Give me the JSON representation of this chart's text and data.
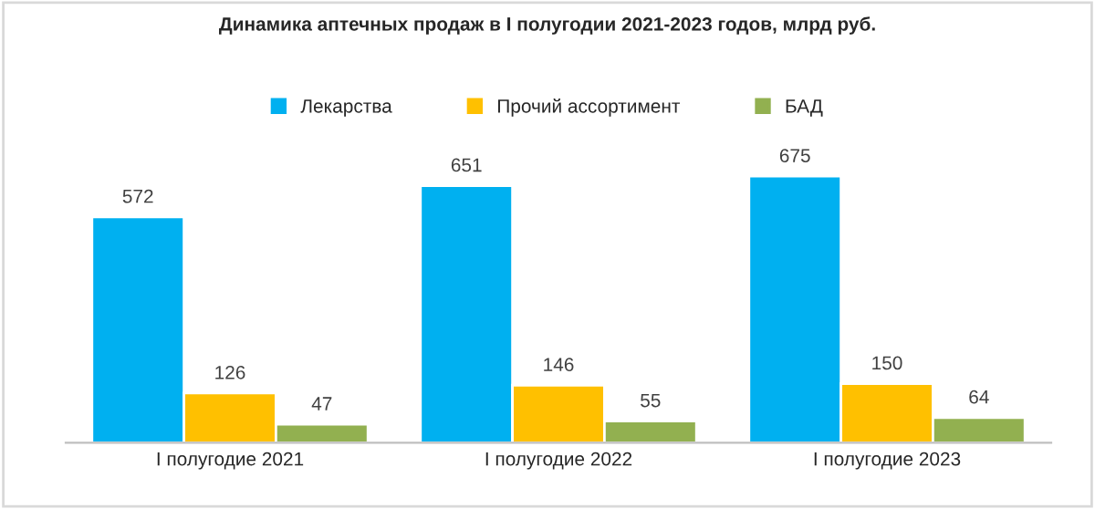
{
  "chart_data": {
    "type": "bar",
    "title": "Динамика аптечных продаж в I полугодии 2021-2023 годов, млрд руб.",
    "categories": [
      "I полугодие 2021",
      "I полугодие 2022",
      "I полугодие 2023"
    ],
    "series": [
      {
        "name": "Лекарства",
        "color": "#00b0f0",
        "values": [
          572,
          651,
          675
        ]
      },
      {
        "name": "Прочий ассортимент",
        "color": "#ffc000",
        "values": [
          126,
          146,
          150
        ]
      },
      {
        "name": "БАД",
        "color": "#92b050",
        "values": [
          47,
          55,
          64
        ]
      }
    ],
    "data_labels": true,
    "legend": "top",
    "grid": false
  }
}
